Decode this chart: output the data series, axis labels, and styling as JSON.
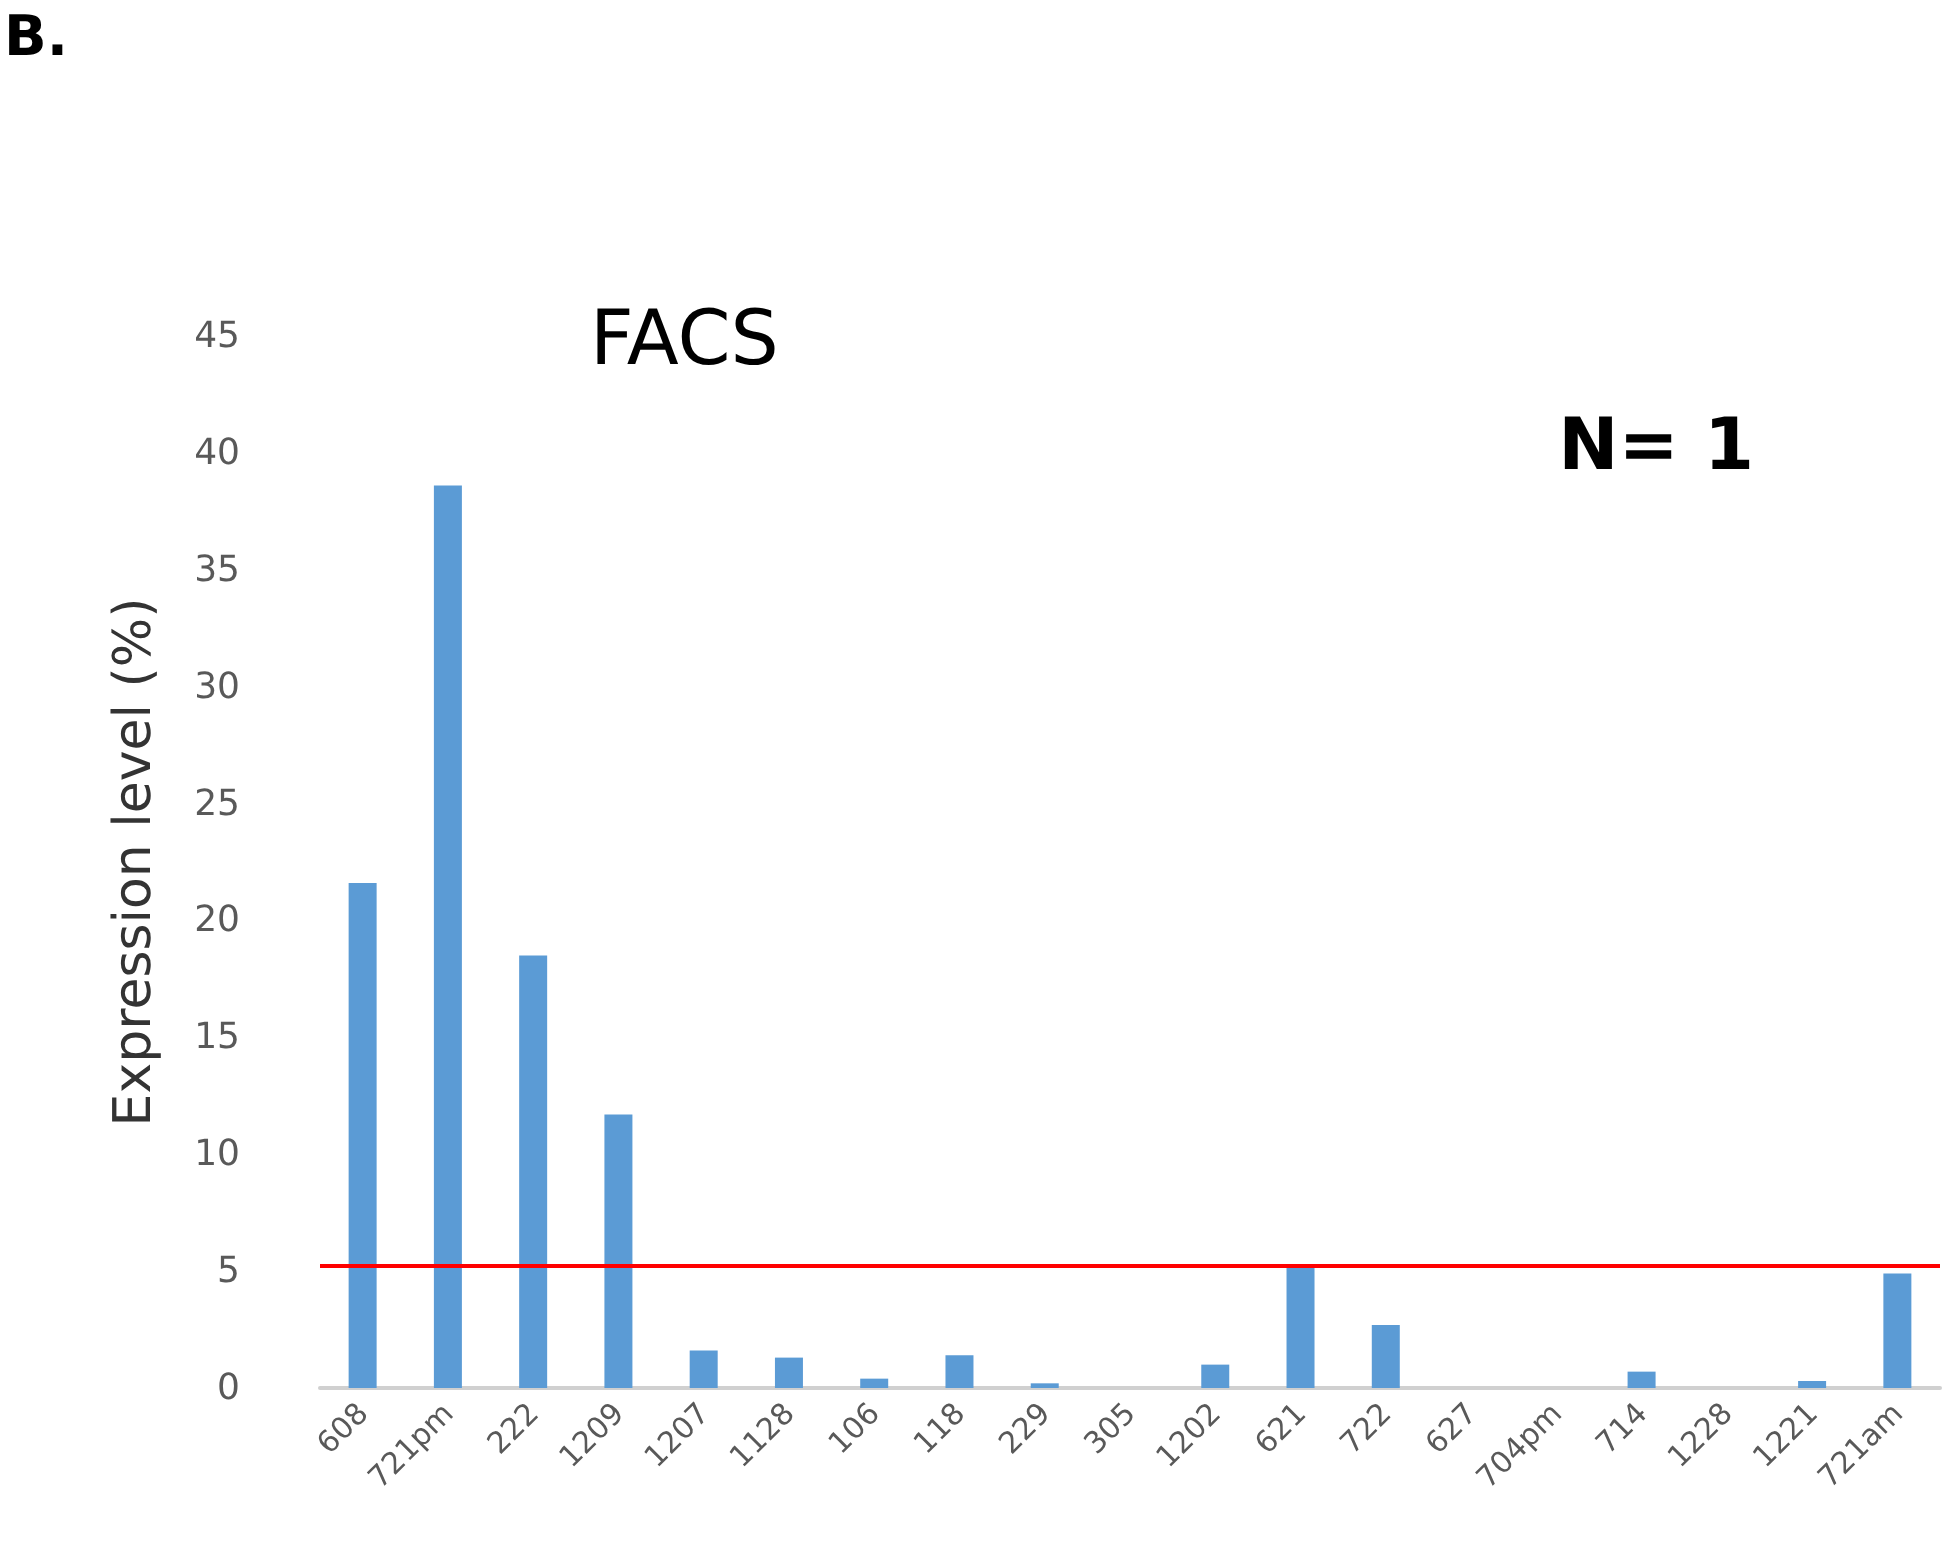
{
  "chart_data": {
    "type": "bar",
    "title": "FACS",
    "ylabel": "Expression level (%)",
    "categories": [
      "608",
      "721pm",
      "222",
      "1209",
      "1207",
      "1128",
      "106",
      "118",
      "229",
      "305",
      "1202",
      "621",
      "722",
      "627",
      "704pm",
      "714",
      "1228",
      "1221",
      "721am"
    ],
    "values": [
      21.6,
      38.6,
      18.5,
      11.7,
      1.6,
      1.3,
      0.4,
      1.4,
      0.2,
      0,
      1.0,
      5.2,
      2.7,
      0,
      0,
      0.7,
      0,
      0.3,
      4.9
    ],
    "color": "#5b9bd5",
    "ylim": [
      0,
      45
    ],
    "yticks": [
      0,
      5,
      10,
      15,
      20,
      25,
      30,
      35,
      40,
      45
    ],
    "grid": false,
    "ref_lines": [
      {
        "axis": "y",
        "value": 5.2,
        "color": "#ff0000",
        "line_style": "solid"
      }
    ],
    "annotations": [
      "B.",
      "N= 1"
    ]
  }
}
